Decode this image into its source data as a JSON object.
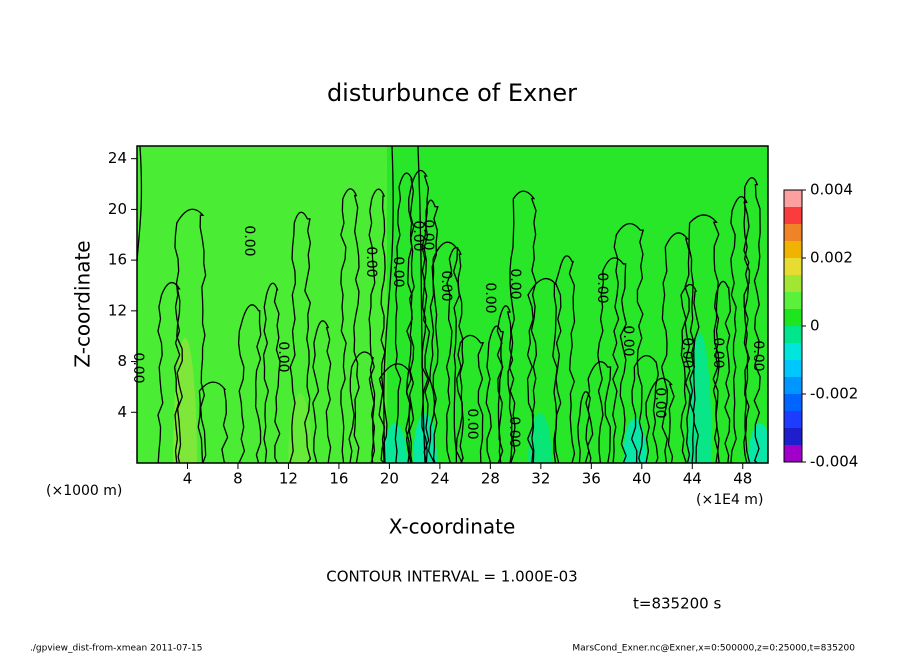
{
  "chart_data": {
    "type": "contour",
    "title": "disturbunce of Exner",
    "x_label": "X-coordinate",
    "y_label": "Z-coordinate",
    "x_unit_left": "(×1000 m)",
    "x_unit_right": "(×1E4 m)",
    "xlim": [
      0,
      50
    ],
    "xticks": [
      4,
      8,
      12,
      16,
      20,
      24,
      28,
      32,
      36,
      40,
      44,
      48
    ],
    "ylim": [
      0,
      25
    ],
    "yticks": [
      4,
      8,
      12,
      16,
      20,
      24
    ],
    "contour_interval": "CONTOUR INTERVAL = 1.000E-03",
    "time": "t=835200 s",
    "contour_labels": [
      "0.00",
      "0.00",
      "0.00",
      "0.00",
      "0.00",
      "0.00",
      "0.00",
      "0.00",
      "0.00",
      "0.00",
      "0.00",
      "0.00",
      "0.00",
      "0.00",
      "0.00",
      "0.00",
      "0.00",
      "0.00"
    ],
    "colorbar": {
      "levels": [
        -0.004,
        -0.0035,
        -0.003,
        -0.0025,
        -0.002,
        -0.0015,
        -0.001,
        -0.0005,
        0,
        0.0005,
        0.001,
        0.0015,
        0.002,
        0.0025,
        0.003,
        0.0035,
        0.004
      ],
      "colors": [
        "#a000c8",
        "#1e1ecc",
        "#1e3cff",
        "#0064ff",
        "#0096ff",
        "#00c8ff",
        "#00e6dc",
        "#00e68c",
        "#1ee61e",
        "#5af03c",
        "#a0e632",
        "#e6dc32",
        "#f0b400",
        "#f08228",
        "#fa3c3c",
        "#ffa0a0"
      ],
      "ticks": [
        0.004,
        0.002,
        0,
        -0.002,
        -0.004
      ]
    }
  },
  "footer": {
    "left": "./gpview_dist-from-xmean  2011-07-15",
    "right": "MarsCond_Exner.nc@Exner,x=0:500000,z=0:25000,t=835200"
  }
}
